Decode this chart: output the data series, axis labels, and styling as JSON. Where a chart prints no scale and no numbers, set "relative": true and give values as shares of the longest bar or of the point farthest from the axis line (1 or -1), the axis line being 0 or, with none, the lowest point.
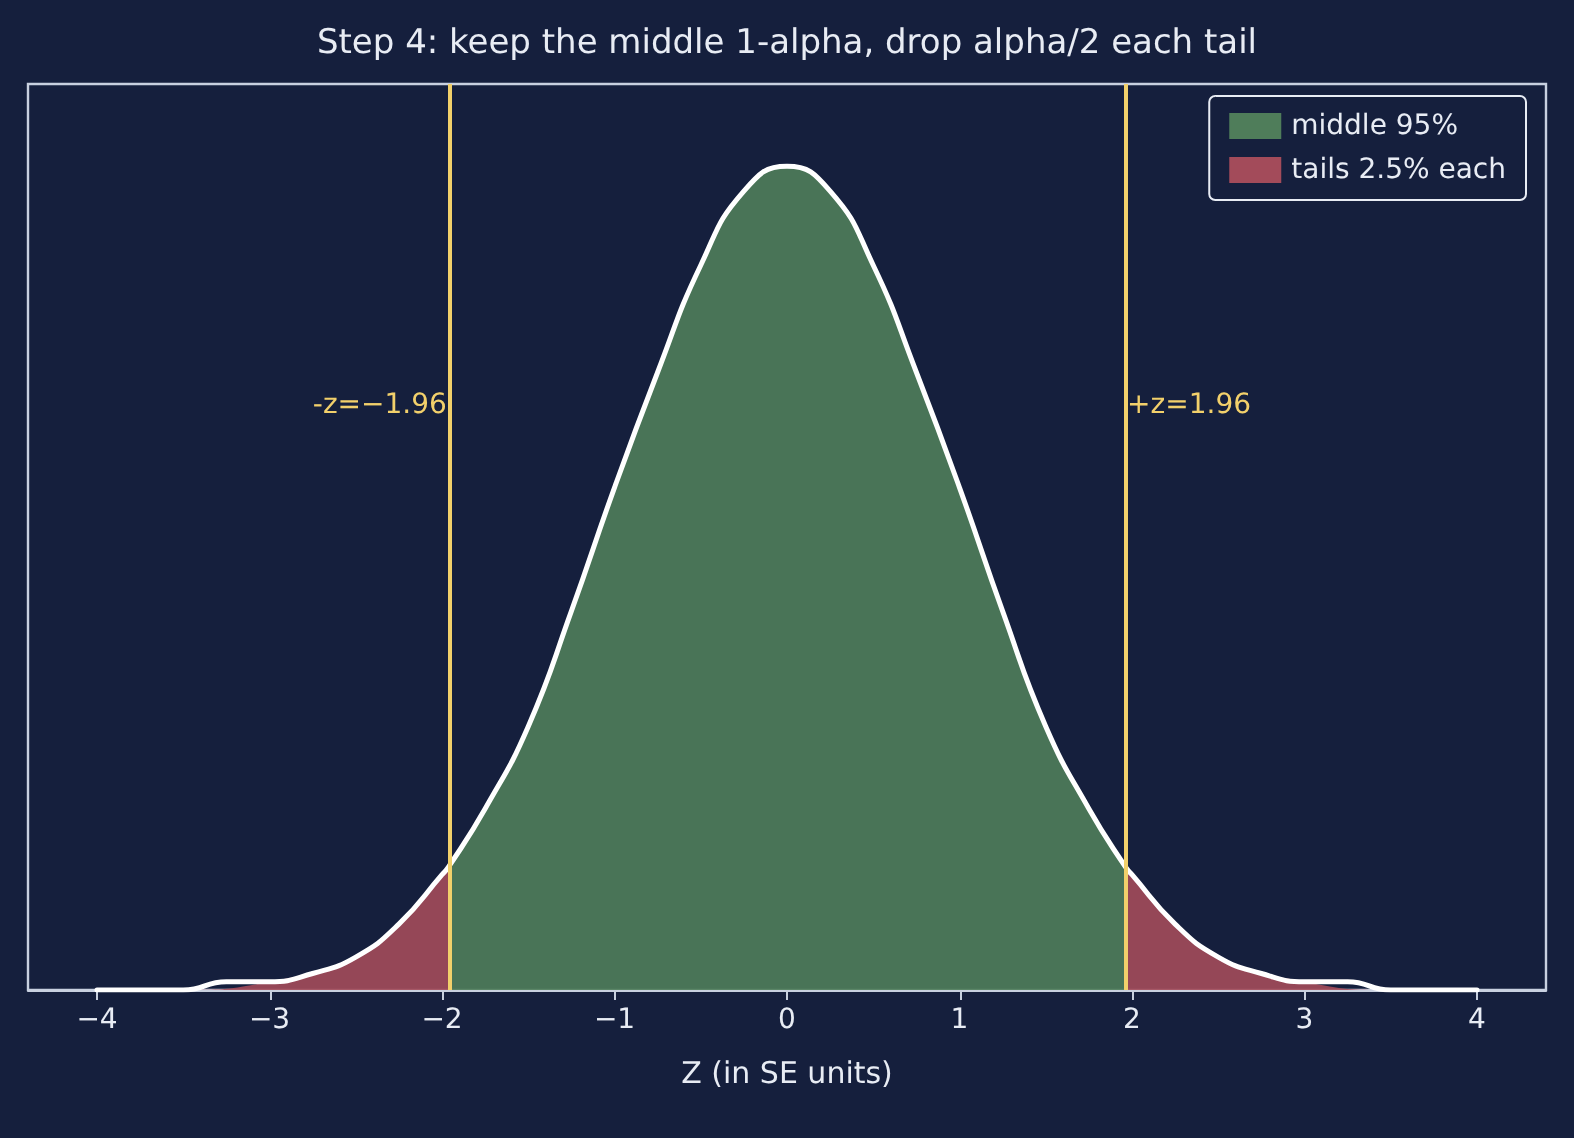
{
  "chart_data": {
    "type": "area",
    "title": "Step 4: keep the middle 1-alpha, drop alpha/2 each tail",
    "xlabel": "Z (in SE units)",
    "relative": true,
    "xlim": [
      -4.4,
      4.4
    ],
    "xticks": [
      {
        "value": -4,
        "label": "−4"
      },
      {
        "value": -3,
        "label": "−3"
      },
      {
        "value": -2,
        "label": "−2"
      },
      {
        "value": -1,
        "label": "−1"
      },
      0,
      1,
      2,
      3,
      4
    ],
    "series": [
      {
        "name": "middle 95%",
        "color": "#4f7d5a",
        "x": [
          -1.96,
          -1.75,
          -1.5,
          -1.25,
          -1,
          -0.75,
          -0.5,
          -0.25,
          0,
          0.25,
          0.5,
          0.75,
          1,
          1.25,
          1.5,
          1.75,
          1.96
        ],
        "values": [
          0.15,
          0.22,
          0.32,
          0.46,
          0.61,
          0.75,
          0.88,
          0.97,
          1,
          0.97,
          0.88,
          0.75,
          0.61,
          0.46,
          0.32,
          0.22,
          0.15
        ]
      },
      {
        "name": "tails 2.5% each",
        "color": "#a34b5a",
        "x": [
          -4,
          -3.5,
          -3,
          -2.5,
          -2.25,
          -2,
          -1.96,
          0,
          1.96,
          2,
          2.25,
          2.5,
          3,
          3.5,
          4
        ],
        "values": [
          0,
          0,
          0.01,
          0.04,
          0.08,
          0.14,
          0.15,
          null,
          0.15,
          0.14,
          0.08,
          0.04,
          0.01,
          0,
          0
        ]
      },
      {
        "type": "line",
        "color": "#ffffff",
        "x": [
          -4,
          -3.75,
          -3.5,
          -3.25,
          -3,
          -2.75,
          -2.5,
          -2.25,
          -2,
          -1.96,
          -1.75,
          -1.5,
          -1.25,
          -1,
          -0.75,
          -0.5,
          -0.25,
          0,
          0.25,
          0.5,
          0.75,
          1,
          1.25,
          1.5,
          1.75,
          1.96,
          2,
          2.25,
          2.5,
          2.75,
          3,
          3.25,
          3.5,
          3.75,
          4
        ],
        "values": [
          0,
          0,
          0,
          0.01,
          0.01,
          0.02,
          0.04,
          0.08,
          0.14,
          0.15,
          0.22,
          0.32,
          0.46,
          0.61,
          0.75,
          0.88,
          0.97,
          1,
          0.97,
          0.88,
          0.75,
          0.61,
          0.46,
          0.32,
          0.22,
          0.15,
          0.14,
          0.08,
          0.04,
          0.02,
          0.01,
          0.01,
          0,
          0,
          0
        ]
      }
    ],
    "ref_lines": [
      {
        "axis": "x",
        "value": -1.96,
        "label": "-z=−1.96",
        "color": "#f2d06b"
      },
      {
        "axis": "x",
        "value": 1.96,
        "label": "+z=1.96",
        "color": "#f2d06b"
      }
    ],
    "grid": false,
    "legend": "top right",
    "marker": "none",
    "line_style": "solid"
  }
}
